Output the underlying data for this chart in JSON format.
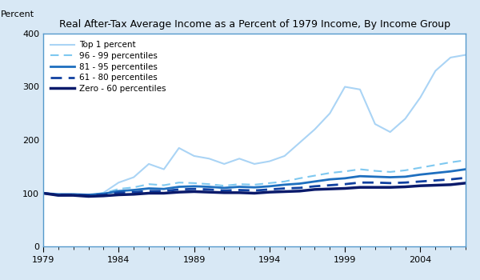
{
  "title": "Real After-Tax Average Income as a Percent of 1979 Income, By Income Group",
  "ylabel": "Percent",
  "years": [
    1979,
    1980,
    1981,
    1982,
    1983,
    1984,
    1985,
    1986,
    1987,
    1988,
    1989,
    1990,
    1991,
    1992,
    1993,
    1994,
    1995,
    1996,
    1997,
    1998,
    1999,
    2000,
    2001,
    2002,
    2003,
    2004,
    2005,
    2006,
    2007
  ],
  "series": {
    "Top 1 percent": {
      "values": [
        100,
        95,
        97,
        96,
        101,
        120,
        130,
        155,
        145,
        185,
        170,
        165,
        155,
        165,
        155,
        160,
        170,
        195,
        220,
        250,
        300,
        295,
        230,
        215,
        240,
        280,
        330,
        355,
        360
      ],
      "color": "#aad4f5",
      "linestyle": "solid",
      "linewidth": 1.5,
      "label": "Top 1 percent"
    },
    "96 - 99 percentiles": {
      "values": [
        100,
        97,
        97,
        97,
        100,
        108,
        111,
        117,
        115,
        120,
        119,
        117,
        114,
        117,
        116,
        119,
        122,
        128,
        133,
        138,
        141,
        145,
        142,
        140,
        143,
        148,
        153,
        158,
        162
      ],
      "color": "#7ec8f0",
      "linestyle": "dashed",
      "linewidth": 1.5,
      "label": "96 - 99 percentiles"
    },
    "81 - 95 percentiles": {
      "values": [
        100,
        98,
        98,
        97,
        99,
        104,
        106,
        109,
        108,
        112,
        113,
        112,
        110,
        112,
        111,
        113,
        116,
        118,
        122,
        126,
        128,
        132,
        131,
        130,
        131,
        135,
        138,
        141,
        145
      ],
      "color": "#1e6fbf",
      "linestyle": "solid",
      "linewidth": 2.0,
      "label": "81 - 95 percentiles"
    },
    "61 - 80 percentiles": {
      "values": [
        100,
        97,
        97,
        96,
        97,
        101,
        102,
        104,
        104,
        107,
        108,
        107,
        105,
        106,
        105,
        107,
        109,
        110,
        113,
        115,
        117,
        120,
        120,
        119,
        120,
        122,
        124,
        126,
        129
      ],
      "color": "#1040a0",
      "linestyle": "dashed",
      "linewidth": 2.0,
      "label": "61 - 80 percentiles"
    },
    "Zero - 60 percentiles": {
      "values": [
        100,
        96,
        96,
        94,
        95,
        97,
        98,
        100,
        100,
        102,
        103,
        102,
        101,
        101,
        100,
        102,
        103,
        104,
        107,
        108,
        109,
        111,
        111,
        111,
        112,
        114,
        115,
        116,
        119
      ],
      "color": "#0a1a6b",
      "linestyle": "solid",
      "linewidth": 2.5,
      "label": "Zero - 60 percentiles"
    }
  },
  "xlim": [
    1979,
    2007
  ],
  "ylim": [
    0,
    400
  ],
  "yticks": [
    0,
    100,
    200,
    300,
    400
  ],
  "xticks": [
    1979,
    1984,
    1989,
    1994,
    1999,
    2004
  ],
  "all_years": [
    1979,
    1980,
    1981,
    1982,
    1983,
    1984,
    1985,
    1986,
    1987,
    1988,
    1989,
    1990,
    1991,
    1992,
    1993,
    1994,
    1995,
    1996,
    1997,
    1998,
    1999,
    2000,
    2001,
    2002,
    2003,
    2004,
    2005,
    2006,
    2007
  ],
  "background_color": "#d8e8f5",
  "plot_background": "#ffffff",
  "border_color": "#5599cc",
  "legend_order": [
    "Top 1 percent",
    "96 - 99 percentiles",
    "81 - 95 percentiles",
    "61 - 80 percentiles",
    "Zero - 60 percentiles"
  ]
}
